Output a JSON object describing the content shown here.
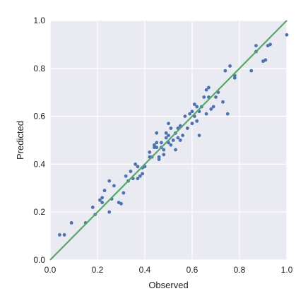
{
  "colors": {
    "plot_background": "#eaeaf2",
    "grid": "#ffffff",
    "points": "#4c72b0",
    "fit_line": "#55a868"
  },
  "chart_data": {
    "type": "scatter",
    "title": "",
    "xlabel": "Observed",
    "ylabel": "Predicted",
    "xlim": [
      0.0,
      1.0
    ],
    "ylim": [
      0.0,
      1.0
    ],
    "grid": true,
    "legend": "none",
    "xticks": [
      "0.0",
      "0.2",
      "0.4",
      "0.6",
      "0.8",
      "1.0"
    ],
    "yticks": [
      "0.0",
      "0.2",
      "0.4",
      "0.6",
      "0.8",
      "1.0"
    ],
    "reference_line": {
      "x": [
        0.0,
        1.0
      ],
      "y": [
        0.0,
        1.0
      ]
    },
    "points": [
      [
        0.04,
        0.105
      ],
      [
        0.06,
        0.105
      ],
      [
        0.09,
        0.155
      ],
      [
        0.15,
        0.155
      ],
      [
        0.18,
        0.22
      ],
      [
        0.19,
        0.19
      ],
      [
        0.21,
        0.25
      ],
      [
        0.22,
        0.24
      ],
      [
        0.22,
        0.26
      ],
      [
        0.23,
        0.29
      ],
      [
        0.25,
        0.2
      ],
      [
        0.25,
        0.33
      ],
      [
        0.26,
        0.255
      ],
      [
        0.27,
        0.31
      ],
      [
        0.29,
        0.24
      ],
      [
        0.3,
        0.235
      ],
      [
        0.31,
        0.28
      ],
      [
        0.32,
        0.35
      ],
      [
        0.33,
        0.33
      ],
      [
        0.34,
        0.37
      ],
      [
        0.35,
        0.34
      ],
      [
        0.36,
        0.4
      ],
      [
        0.37,
        0.34
      ],
      [
        0.37,
        0.39
      ],
      [
        0.38,
        0.35
      ],
      [
        0.39,
        0.36
      ],
      [
        0.39,
        0.385
      ],
      [
        0.4,
        0.39
      ],
      [
        0.42,
        0.43
      ],
      [
        0.42,
        0.45
      ],
      [
        0.43,
        0.43
      ],
      [
        0.44,
        0.48
      ],
      [
        0.44,
        0.47
      ],
      [
        0.45,
        0.47
      ],
      [
        0.45,
        0.53
      ],
      [
        0.45,
        0.49
      ],
      [
        0.46,
        0.43
      ],
      [
        0.46,
        0.42
      ],
      [
        0.47,
        0.49
      ],
      [
        0.47,
        0.47
      ],
      [
        0.48,
        0.46
      ],
      [
        0.48,
        0.44
      ],
      [
        0.49,
        0.51
      ],
      [
        0.49,
        0.53
      ],
      [
        0.5,
        0.52
      ],
      [
        0.5,
        0.49
      ],
      [
        0.5,
        0.57
      ],
      [
        0.51,
        0.48
      ],
      [
        0.51,
        0.55
      ],
      [
        0.52,
        0.5
      ],
      [
        0.53,
        0.53
      ],
      [
        0.53,
        0.46
      ],
      [
        0.54,
        0.55
      ],
      [
        0.54,
        0.51
      ],
      [
        0.55,
        0.56
      ],
      [
        0.55,
        0.5
      ],
      [
        0.56,
        0.52
      ],
      [
        0.57,
        0.6
      ],
      [
        0.58,
        0.55
      ],
      [
        0.59,
        0.61
      ],
      [
        0.6,
        0.62
      ],
      [
        0.6,
        0.57
      ],
      [
        0.61,
        0.65
      ],
      [
        0.61,
        0.6
      ],
      [
        0.62,
        0.64
      ],
      [
        0.62,
        0.58
      ],
      [
        0.63,
        0.62
      ],
      [
        0.63,
        0.52
      ],
      [
        0.64,
        0.64
      ],
      [
        0.65,
        0.68
      ],
      [
        0.66,
        0.71
      ],
      [
        0.66,
        0.61
      ],
      [
        0.67,
        0.72
      ],
      [
        0.67,
        0.68
      ],
      [
        0.68,
        0.63
      ],
      [
        0.69,
        0.64
      ],
      [
        0.7,
        0.68
      ],
      [
        0.71,
        0.7
      ],
      [
        0.73,
        0.66
      ],
      [
        0.74,
        0.79
      ],
      [
        0.75,
        0.61
      ],
      [
        0.76,
        0.81
      ],
      [
        0.78,
        0.77
      ],
      [
        0.78,
        0.76
      ],
      [
        0.85,
        0.79
      ],
      [
        0.87,
        0.87
      ],
      [
        0.87,
        0.895
      ],
      [
        0.9,
        0.83
      ],
      [
        0.91,
        0.835
      ],
      [
        0.92,
        0.895
      ],
      [
        0.93,
        0.9
      ],
      [
        1.0,
        0.94
      ]
    ]
  }
}
